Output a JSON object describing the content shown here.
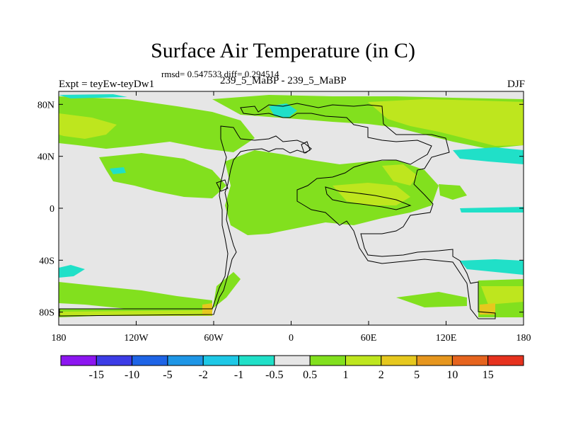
{
  "title": "Surface Air Temperature (in C)",
  "stats": "rmsd= 0.547533 diff= 0.294514",
  "expt_label": "Expt = teyEw-teyDw1",
  "case_label": "239_5_MaBP - 239_5_MaBP",
  "season": "DJF",
  "map": {
    "projection": "cylindrical equidistant",
    "lon_range": [
      -180,
      180
    ],
    "lat_range": [
      -90,
      90
    ],
    "x_ticks": [
      "180",
      "120W",
      "60W",
      "0",
      "60E",
      "120E",
      "180"
    ],
    "y_ticks": [
      "80N",
      "40N",
      "0",
      "40S",
      "80S"
    ],
    "background_color": "#e6e6e6",
    "coastline_color": "#000000"
  },
  "colorbar": {
    "colors": [
      "#8c16f0",
      "#3c3ce6",
      "#1e64e6",
      "#1e96e6",
      "#1ec8e6",
      "#20e0c8",
      "#e6e6e6",
      "#82e01e",
      "#bee61e",
      "#e6c81e",
      "#e6961e",
      "#e6641e",
      "#e6321e"
    ],
    "labels": [
      "-15",
      "-10",
      "-5",
      "-2",
      "-1",
      "-0.5",
      "0.5",
      "1",
      "2",
      "5",
      "10",
      "15"
    ]
  }
}
